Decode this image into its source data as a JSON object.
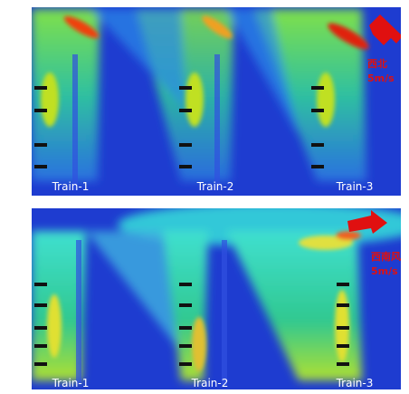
{
  "panels": [
    {
      "labels": [
        "Train-1",
        "Train-2",
        "Train-3"
      ],
      "wind_label": [
        "西北",
        "5m/s"
      ]
    },
    {
      "labels": [
        "Train-1",
        "Train-2",
        "Train-3"
      ],
      "wind_label": [
        "西南风",
        "5m/s"
      ]
    }
  ]
}
